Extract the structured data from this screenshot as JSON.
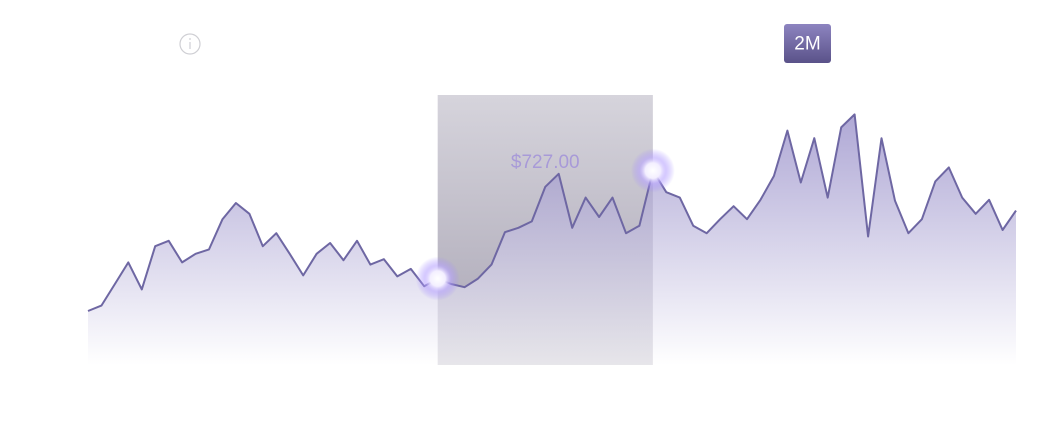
{
  "range_button": "2M",
  "chart_data": {
    "type": "area",
    "annotation": "$727.00",
    "color": "#6e67a3",
    "ylim": [
      0,
      250
    ],
    "selection": [
      26,
      42
    ],
    "values": [
      50,
      55,
      75,
      95,
      70,
      110,
      115,
      95,
      103,
      107,
      135,
      150,
      140,
      110,
      122,
      103,
      83,
      103,
      113,
      97,
      115,
      93,
      98,
      82,
      89,
      73,
      80,
      75,
      72,
      80,
      93,
      123,
      127,
      133,
      165,
      177,
      127,
      155,
      137,
      155,
      122,
      129,
      180,
      160,
      155,
      129,
      122,
      135,
      147,
      135,
      153,
      175,
      217,
      169,
      210,
      155,
      220,
      232,
      119,
      210,
      152,
      122,
      135,
      170,
      183,
      155,
      140,
      153,
      125,
      143
    ]
  }
}
